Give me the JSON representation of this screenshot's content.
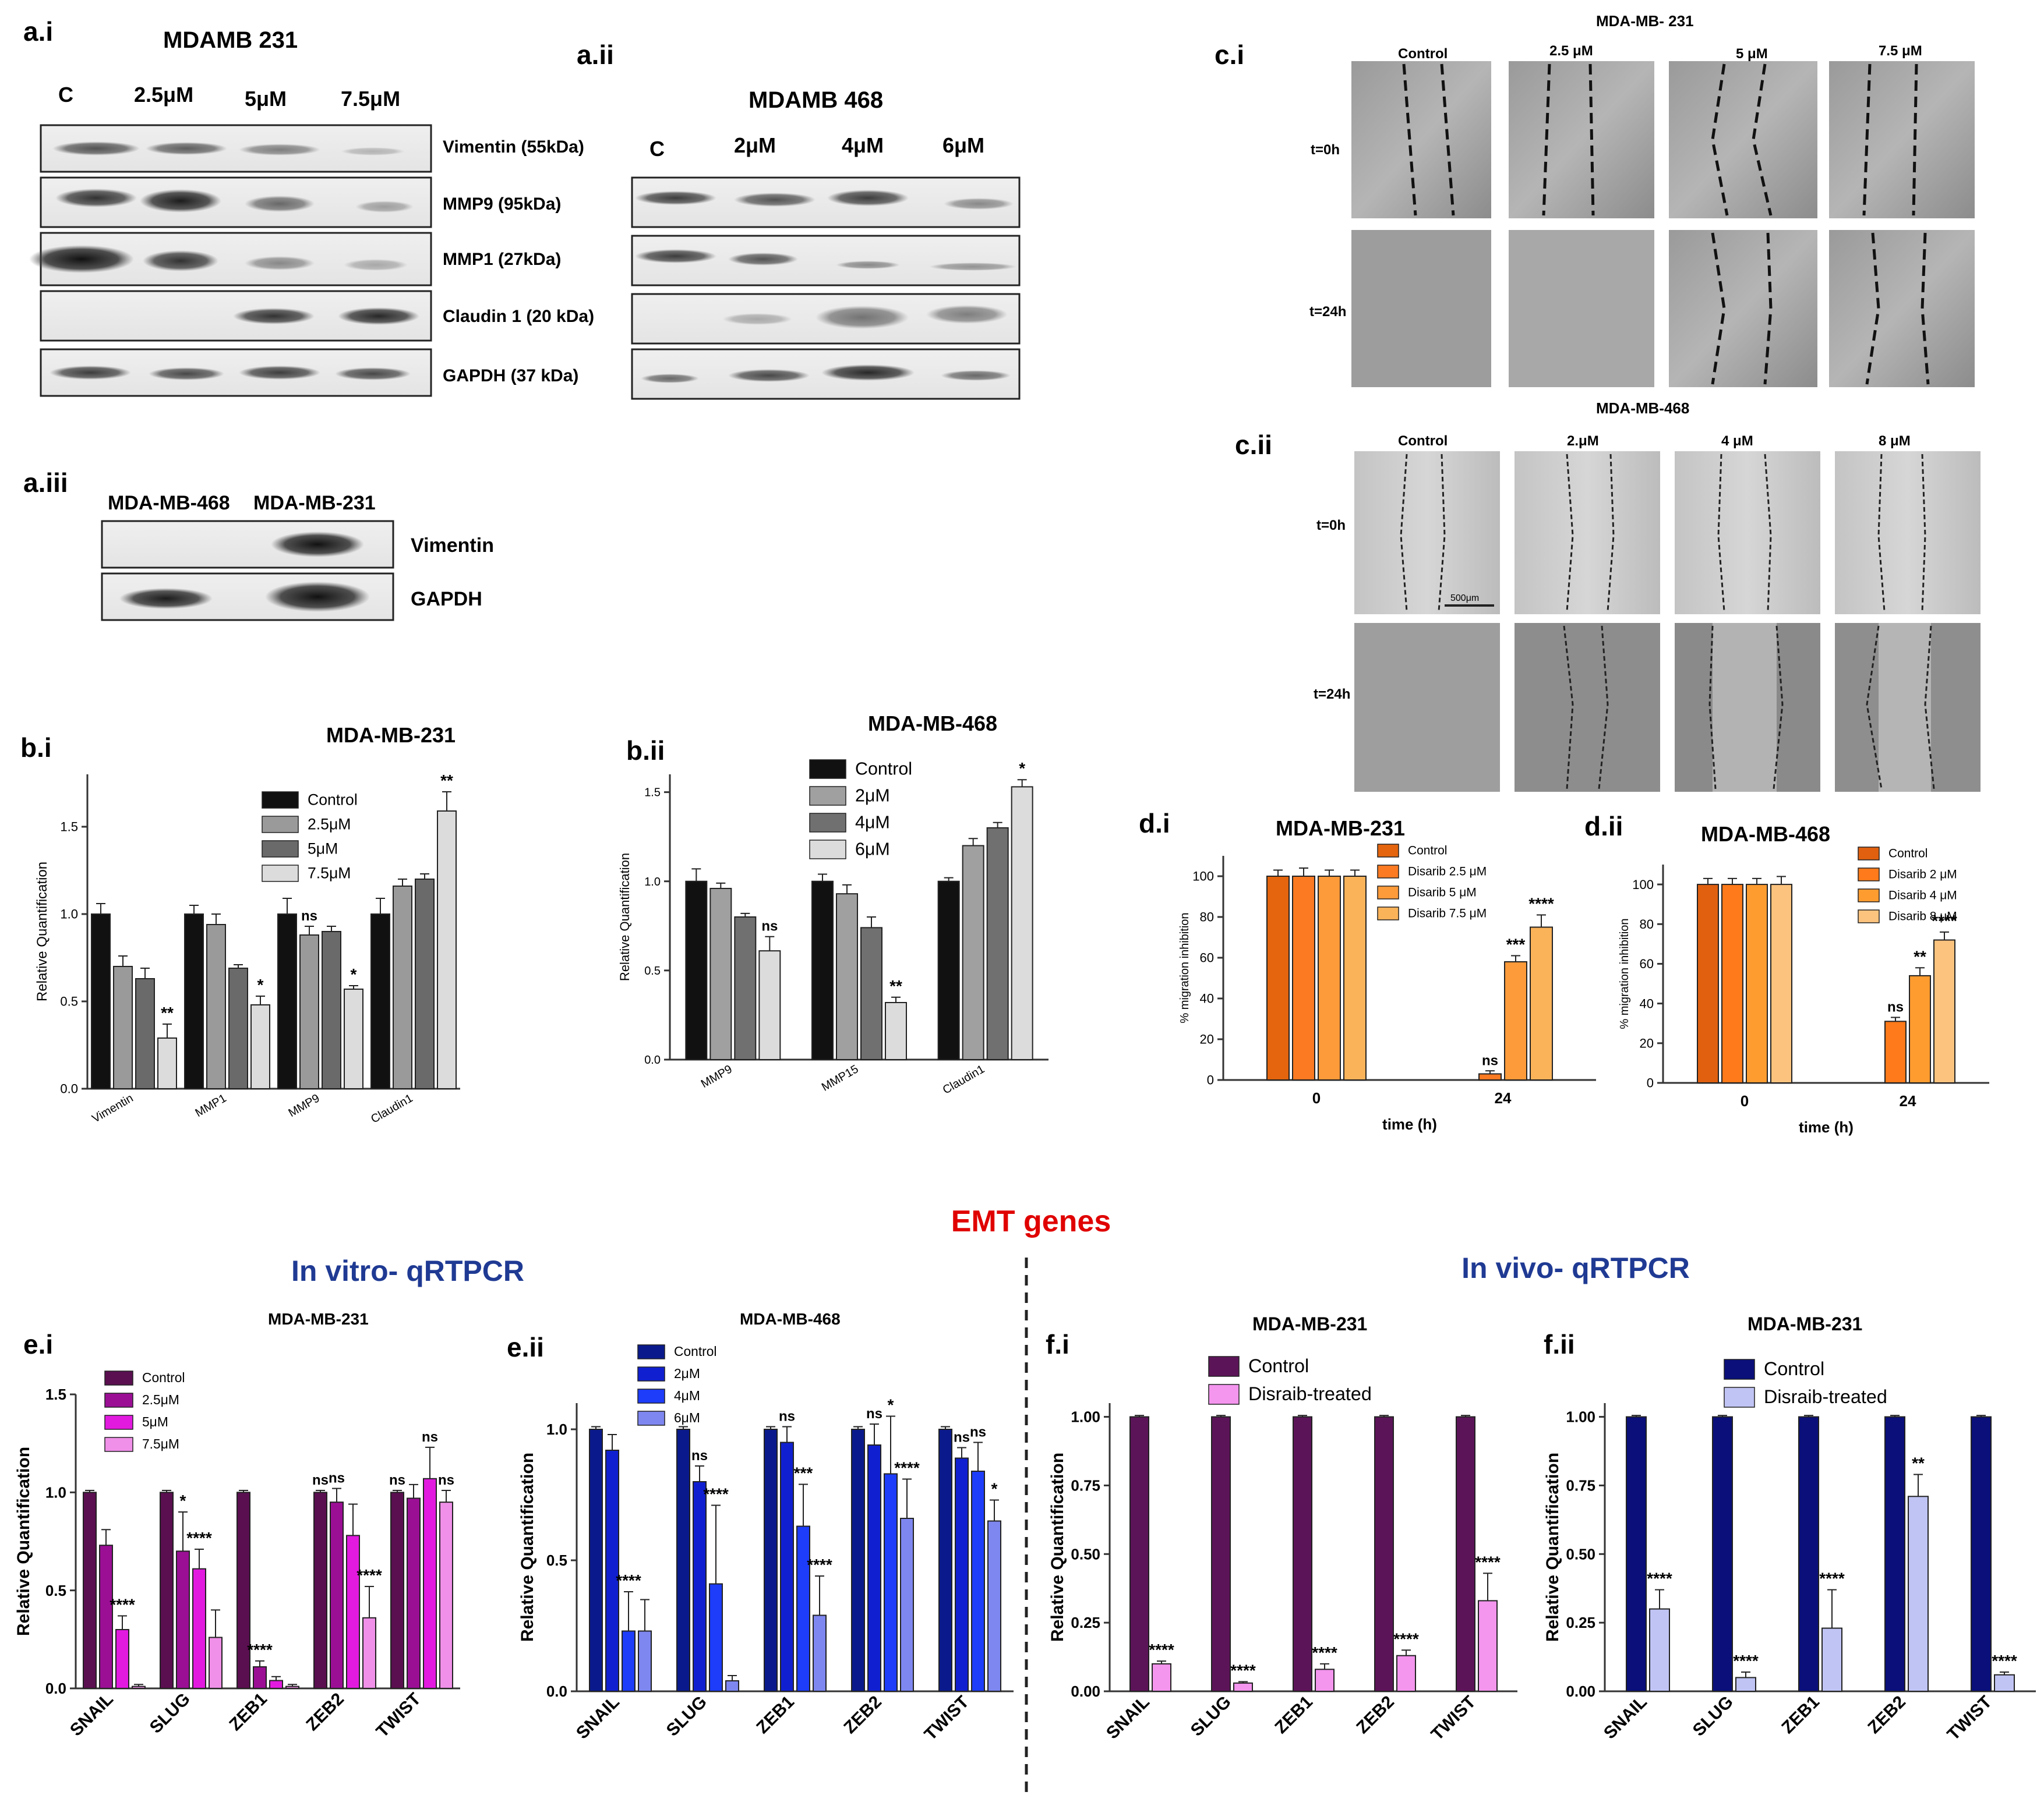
{
  "panels": {
    "a_i": {
      "label": "a.i",
      "title": "MDAMB 231",
      "lanes": [
        "C",
        "2.5μM",
        "5μM",
        "7.5μM"
      ],
      "bands": [
        "Vimentin   (55kDa)",
        "MMP9   (95kDa)",
        "MMP1  (27kDa)",
        "Claudin 1 (20 kDa)",
        "GAPDH (37 kDa)"
      ]
    },
    "a_ii": {
      "label": "a.ii",
      "title": "MDAMB 468",
      "lanes": [
        "C",
        "2μM",
        "4μM",
        "6μM"
      ]
    },
    "a_iii": {
      "label": "a.iii",
      "lanes": [
        "MDA-MB-468",
        "MDA-MB-231"
      ],
      "bands": [
        "Vimentin",
        "GAPDH"
      ]
    },
    "c_i": {
      "label": "c.i",
      "title": "MDA-MB- 231",
      "columns": [
        "Control",
        "2.5 μM",
        "5 μM",
        "7.5 μM"
      ],
      "rows": [
        "t=0h",
        "t=24h"
      ]
    },
    "c_ii": {
      "label": "c.ii",
      "title": "MDA-MB-468",
      "columns": [
        "Control",
        "2.μM",
        "4 μM",
        "8 μM"
      ],
      "rows": [
        "t=0h",
        "t=24h"
      ],
      "scale_bar": "500μm"
    },
    "d_i_label": "d.i",
    "d_ii_label": "d.ii",
    "b_i_label": "b.i",
    "b_ii_label": "b.ii",
    "e_i_label": "e.i",
    "e_ii_label": "e.ii",
    "f_i_label": "f.i",
    "f_ii_label": "f.ii"
  },
  "section": {
    "title": "EMT genes",
    "title_color": "#e00000",
    "in_vitro": "In vitro- qRTPCR",
    "in_vivo": "In vivo- qRTPCR",
    "subtitle_color": "#1f3a93"
  },
  "chart_data": [
    {
      "id": "b_i",
      "type": "bar",
      "title": "MDA-MB-231",
      "ylabel": "Relative Quantification",
      "categories": [
        "Vimentin",
        "MMP1",
        "MMP9",
        "Claudin1"
      ],
      "ylim": [
        0,
        1.8
      ],
      "yticks": [
        0.0,
        0.5,
        1.0,
        1.5
      ],
      "ytick_labels": [
        "0.0",
        "0.5",
        "1.0",
        "1.5"
      ],
      "legend": "top-left",
      "series": [
        {
          "name": "Control",
          "color": "#111111",
          "values": [
            1.0,
            1.0,
            1.0,
            1.0
          ],
          "err": [
            0.06,
            0.05,
            0.09,
            0.09
          ]
        },
        {
          "name": "2.5μM",
          "color": "#9a9a9a",
          "values": [
            0.7,
            0.94,
            0.88,
            1.16
          ],
          "err": [
            0.06,
            0.06,
            0.05,
            0.04
          ]
        },
        {
          "name": "5μM",
          "color": "#6a6a6a",
          "values": [
            0.63,
            0.69,
            0.9,
            1.2
          ],
          "err": [
            0.06,
            0.02,
            0.03,
            0.03
          ]
        },
        {
          "name": "7.5μM",
          "color": "#dcdcdc",
          "values": [
            0.29,
            0.48,
            0.57,
            1.59
          ],
          "err": [
            0.08,
            0.05,
            0.02,
            0.11
          ]
        }
      ],
      "annotations": [
        {
          "group": 0,
          "series": 3,
          "text": "**"
        },
        {
          "group": 1,
          "series": 3,
          "text": "*"
        },
        {
          "group": 2,
          "series": 1,
          "text": "ns"
        },
        {
          "group": 2,
          "series": 3,
          "text": "*"
        },
        {
          "group": 3,
          "series": 3,
          "text": "**"
        }
      ]
    },
    {
      "id": "b_ii",
      "type": "bar",
      "title": "MDA-MB-468",
      "ylabel": "Relative Quantification",
      "categories": [
        "MMP9",
        "MMP15",
        "Claudin1"
      ],
      "ylim": [
        0,
        1.6
      ],
      "yticks": [
        0.0,
        0.5,
        1.0,
        1.5
      ],
      "ytick_labels": [
        "0.0",
        "0.5",
        "1.0",
        "1.5"
      ],
      "legend": "top-right",
      "series": [
        {
          "name": "Control",
          "color": "#111111",
          "values": [
            1.0,
            1.0,
            1.0
          ],
          "err": [
            0.07,
            0.04,
            0.02
          ]
        },
        {
          "name": "2μM",
          "color": "#a0a0a0",
          "values": [
            0.96,
            0.93,
            1.2
          ],
          "err": [
            0.03,
            0.05,
            0.04
          ]
        },
        {
          "name": "4μM",
          "color": "#707070",
          "values": [
            0.8,
            0.74,
            1.3
          ],
          "err": [
            0.02,
            0.06,
            0.03
          ]
        },
        {
          "name": "6μM",
          "color": "#dcdcdc",
          "values": [
            0.61,
            0.32,
            1.53
          ],
          "err": [
            0.08,
            0.03,
            0.04
          ]
        }
      ],
      "annotations": [
        {
          "group": 0,
          "series": 3,
          "text": "ns"
        },
        {
          "group": 1,
          "series": 3,
          "text": "**"
        },
        {
          "group": 2,
          "series": 3,
          "text": "*"
        }
      ]
    },
    {
      "id": "d_i",
      "type": "bar",
      "title": "MDA-MB-231",
      "ylabel": "% migration inhibition",
      "xlabel": "time (h)",
      "categories": [
        "0",
        "24"
      ],
      "ylim": [
        0,
        110
      ],
      "yticks": [
        0,
        20,
        40,
        60,
        80,
        100
      ],
      "ytick_labels": [
        "0",
        "20",
        "40",
        "60",
        "80",
        "100"
      ],
      "legend": "top-right",
      "series": [
        {
          "name": "Control",
          "color": "#e4650d",
          "values": [
            100,
            0
          ],
          "err": [
            3,
            0
          ]
        },
        {
          "name": "Disarib 2.5 μM",
          "color": "#fb7a22",
          "values": [
            100,
            3
          ],
          "err": [
            4,
            1.5
          ]
        },
        {
          "name": "Disarib 5 μM",
          "color": "#fd9a3a",
          "values": [
            100,
            58
          ],
          "err": [
            3,
            3
          ]
        },
        {
          "name": "Disarib 7.5 μM",
          "color": "#fbb35a",
          "values": [
            100,
            75
          ],
          "err": [
            3,
            6
          ]
        }
      ],
      "annotations": [
        {
          "group": 1,
          "series": 1,
          "text": "ns"
        },
        {
          "group": 1,
          "series": 2,
          "text": "***"
        },
        {
          "group": 1,
          "series": 3,
          "text": "****"
        }
      ]
    },
    {
      "id": "d_ii",
      "type": "bar",
      "title": "MDA-MB-468",
      "ylabel": "% migration inhibition",
      "xlabel": "time (h)",
      "categories": [
        "0",
        "24"
      ],
      "ylim": [
        0,
        110
      ],
      "yticks": [
        0,
        20,
        40,
        60,
        80,
        100
      ],
      "ytick_labels": [
        "0",
        "20",
        "40",
        "60",
        "80",
        "100"
      ],
      "legend": "top-right",
      "series": [
        {
          "name": "Control",
          "color": "#e06010",
          "values": [
            100,
            0
          ],
          "err": [
            3,
            0
          ]
        },
        {
          "name": "Disarib 2 μM",
          "color": "#ff7a1a",
          "values": [
            100,
            31
          ],
          "err": [
            3,
            2
          ]
        },
        {
          "name": "Disarib 4 μM",
          "color": "#ff9c30",
          "values": [
            100,
            54
          ],
          "err": [
            3,
            4
          ]
        },
        {
          "name": "Disarib 8 μM",
          "color": "#fcc37e",
          "values": [
            100,
            72
          ],
          "err": [
            4,
            4
          ]
        }
      ],
      "annotations": [
        {
          "group": 1,
          "series": 1,
          "text": "ns"
        },
        {
          "group": 1,
          "series": 2,
          "text": "**"
        },
        {
          "group": 1,
          "series": 3,
          "text": "****"
        }
      ]
    },
    {
      "id": "e_i",
      "type": "bar",
      "title": "MDA-MB-231",
      "ylabel": "Relative Quantification",
      "categories": [
        "SNAIL",
        "SLUG",
        "ZEB1",
        "ZEB2",
        "TWIST"
      ],
      "ylim": [
        0,
        1.5
      ],
      "yticks": [
        0.0,
        0.5,
        1.0,
        1.5
      ],
      "ytick_labels": [
        "0.0",
        "0.5",
        "1.0",
        "1.5"
      ],
      "legend": "top-left",
      "series": [
        {
          "name": "Control",
          "color": "#5a0f50",
          "values": [
            1.0,
            1.0,
            1.0,
            1.0,
            1.0
          ],
          "err": [
            0.01,
            0.01,
            0.01,
            0.01,
            0.01
          ]
        },
        {
          "name": "2.5μM",
          "color": "#9b0f95",
          "values": [
            0.73,
            0.7,
            0.11,
            0.95,
            0.97
          ],
          "err": [
            0.08,
            0.2,
            0.03,
            0.07,
            0.07
          ]
        },
        {
          "name": "5μM",
          "color": "#e21adf",
          "values": [
            0.3,
            0.61,
            0.04,
            0.78,
            1.07
          ],
          "err": [
            0.07,
            0.1,
            0.02,
            0.16,
            0.16
          ]
        },
        {
          "name": "7.5μM",
          "color": "#f090e8",
          "values": [
            0.01,
            0.26,
            0.01,
            0.36,
            0.95
          ],
          "err": [
            0.01,
            0.14,
            0.01,
            0.16,
            0.06
          ]
        }
      ],
      "annotations": [
        {
          "group": 0,
          "series": 2,
          "text": "****"
        },
        {
          "group": 1,
          "series": 1,
          "text": "*"
        },
        {
          "group": 1,
          "series": 2,
          "text": "****"
        },
        {
          "group": 2,
          "series": 1,
          "text": "****"
        },
        {
          "group": 3,
          "series": 0,
          "text": "ns"
        },
        {
          "group": 3,
          "series": 1,
          "text": "ns"
        },
        {
          "group": 3,
          "series": 3,
          "text": "****"
        },
        {
          "group": 4,
          "series": 0,
          "text": "ns"
        },
        {
          "group": 4,
          "series": 2,
          "text": "ns"
        },
        {
          "group": 4,
          "series": 3,
          "text": "ns"
        }
      ]
    },
    {
      "id": "e_ii",
      "type": "bar",
      "title": "MDA-MB-468",
      "ylabel": "Relative Quantification",
      "categories": [
        "SNAIL",
        "SLUG",
        "ZEB1",
        "ZEB2",
        "TWIST"
      ],
      "ylim": [
        0,
        1.1
      ],
      "yticks": [
        0.0,
        0.5,
        1.0
      ],
      "ytick_labels": [
        "0.0",
        "0.5",
        "1.0"
      ],
      "legend": "top-left",
      "series": [
        {
          "name": "Control",
          "color": "#0a1a8c",
          "values": [
            1.0,
            1.0,
            1.0,
            1.0,
            1.0
          ],
          "err": [
            0.01,
            0.01,
            0.01,
            0.01,
            0.01
          ]
        },
        {
          "name": "2μM",
          "color": "#1020d0",
          "values": [
            0.92,
            0.8,
            0.95,
            0.94,
            0.89
          ],
          "err": [
            0.06,
            0.06,
            0.06,
            0.08,
            0.04
          ]
        },
        {
          "name": "4μM",
          "color": "#1d3dfa",
          "values": [
            0.23,
            0.41,
            0.63,
            0.83,
            0.84
          ],
          "err": [
            0.15,
            0.3,
            0.16,
            0.22,
            0.11
          ]
        },
        {
          "name": "6μM",
          "color": "#7e87f0",
          "values": [
            0.23,
            0.04,
            0.29,
            0.66,
            0.65
          ],
          "err": [
            0.12,
            0.02,
            0.15,
            0.15,
            0.08
          ]
        }
      ],
      "annotations": [
        {
          "group": 0,
          "series": 2,
          "text": "****"
        },
        {
          "group": 1,
          "series": 1,
          "text": "ns"
        },
        {
          "group": 1,
          "series": 2,
          "text": "****"
        },
        {
          "group": 2,
          "series": 1,
          "text": "ns"
        },
        {
          "group": 2,
          "series": 2,
          "text": "***"
        },
        {
          "group": 2,
          "series": 3,
          "text": "****"
        },
        {
          "group": 3,
          "series": 1,
          "text": "ns"
        },
        {
          "group": 3,
          "series": 2,
          "text": "*"
        },
        {
          "group": 3,
          "series": 3,
          "text": "****"
        },
        {
          "group": 4,
          "series": 1,
          "text": "ns"
        },
        {
          "group": 4,
          "series": 2,
          "text": "ns"
        },
        {
          "group": 4,
          "series": 3,
          "text": "*"
        }
      ]
    },
    {
      "id": "f_i",
      "type": "bar",
      "title": "MDA-MB-231",
      "ylabel": "Relative Quantification",
      "categories": [
        "SNAIL",
        "SLUG",
        "ZEB1",
        "ZEB2",
        "TWIST"
      ],
      "ylim": [
        0,
        1.05
      ],
      "yticks": [
        0.0,
        0.25,
        0.5,
        0.75,
        1.0
      ],
      "ytick_labels": [
        "0.00",
        "0.25",
        "0.50",
        "0.75",
        "1.00"
      ],
      "legend": "top-left",
      "series": [
        {
          "name": "Control",
          "color": "#5c1458",
          "values": [
            1.0,
            1.0,
            1.0,
            1.0,
            1.0
          ],
          "err": [
            0.005,
            0.005,
            0.005,
            0.005,
            0.005
          ]
        },
        {
          "name": "Disraib-treated",
          "color": "#f495ee",
          "values": [
            0.1,
            0.03,
            0.08,
            0.13,
            0.33
          ],
          "err": [
            0.01,
            0.005,
            0.02,
            0.02,
            0.1
          ]
        }
      ],
      "annotations": [
        {
          "group": 0,
          "series": 1,
          "text": "****"
        },
        {
          "group": 1,
          "series": 1,
          "text": "****"
        },
        {
          "group": 2,
          "series": 1,
          "text": "****"
        },
        {
          "group": 3,
          "series": 1,
          "text": "****"
        },
        {
          "group": 4,
          "series": 1,
          "text": "****"
        }
      ]
    },
    {
      "id": "f_ii",
      "type": "bar",
      "title": "MDA-MB-231",
      "ylabel": "Relative Quantification",
      "categories": [
        "SNAIL",
        "SLUG",
        "ZEB1",
        "ZEB2",
        "TWIST"
      ],
      "ylim": [
        0,
        1.05
      ],
      "yticks": [
        0.0,
        0.25,
        0.5,
        0.75,
        1.0
      ],
      "ytick_labels": [
        "0.00",
        "0.25",
        "0.50",
        "0.75",
        "1.00"
      ],
      "legend": "top-left",
      "series": [
        {
          "name": "Control",
          "color": "#0a0f7a",
          "values": [
            1.0,
            1.0,
            1.0,
            1.0,
            1.0
          ],
          "err": [
            0.005,
            0.005,
            0.005,
            0.005,
            0.005
          ]
        },
        {
          "name": "Disraib-treated",
          "color": "#c0c4f4",
          "values": [
            0.3,
            0.05,
            0.23,
            0.71,
            0.06
          ],
          "err": [
            0.07,
            0.02,
            0.14,
            0.08,
            0.01
          ]
        }
      ],
      "annotations": [
        {
          "group": 0,
          "series": 1,
          "text": "****"
        },
        {
          "group": 1,
          "series": 1,
          "text": "****"
        },
        {
          "group": 2,
          "series": 1,
          "text": "****"
        },
        {
          "group": 3,
          "series": 1,
          "text": "**"
        },
        {
          "group": 4,
          "series": 1,
          "text": "****"
        }
      ]
    }
  ]
}
